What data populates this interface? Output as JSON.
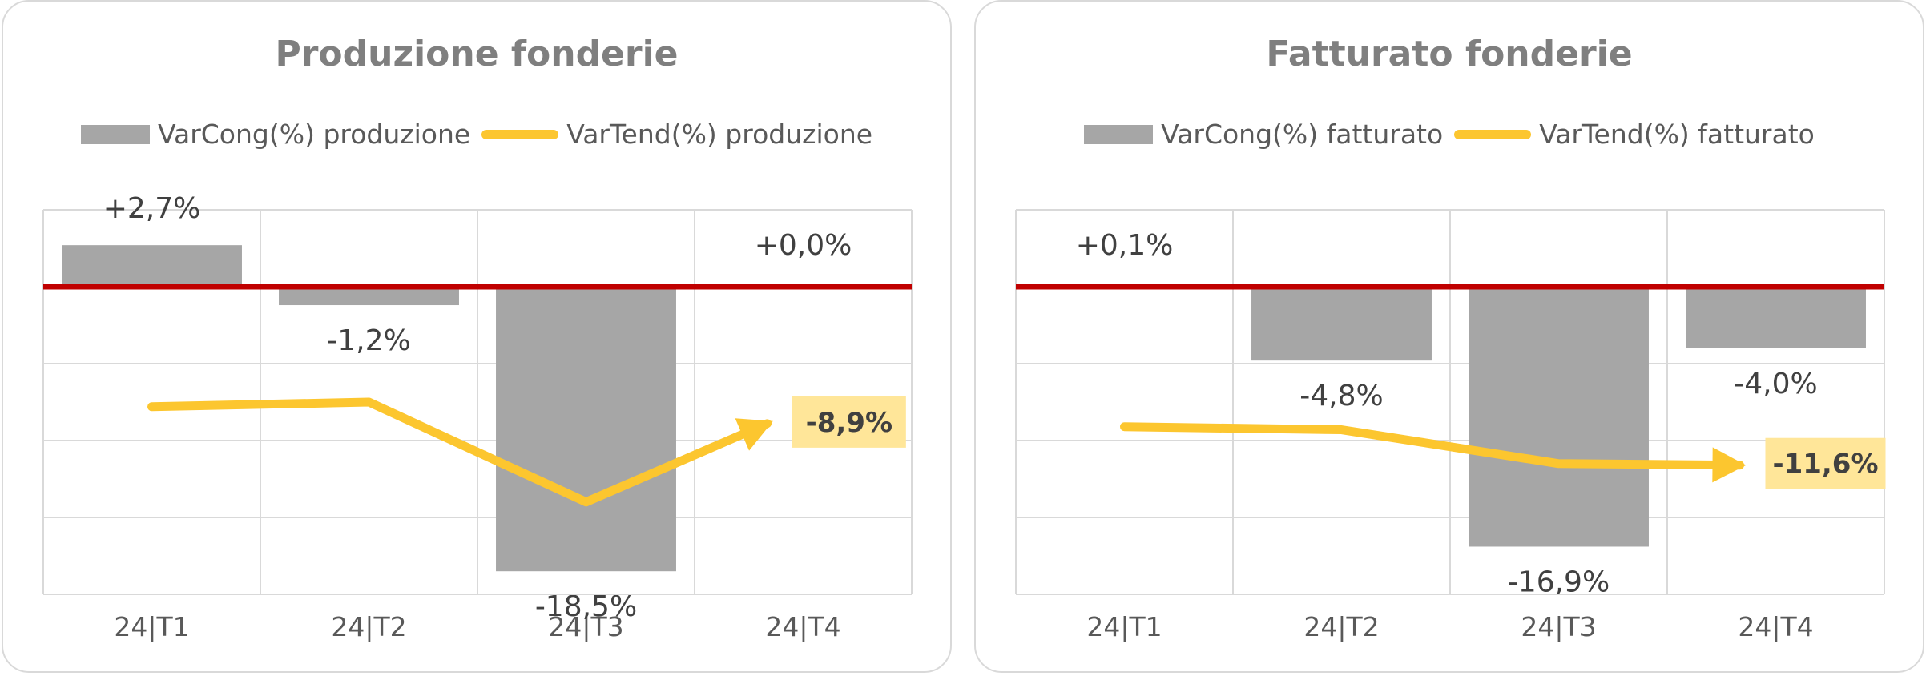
{
  "colors": {
    "bar": "#a6a6a6",
    "line": "#fcc62f",
    "zero_line": "#c00000",
    "grid": "#d9d9d9",
    "callout_bg": "#ffe699",
    "text": "#404040",
    "title": "#7f7f7f"
  },
  "chart_data": [
    {
      "type": "bar",
      "title": "Produzione fonderie",
      "categories": [
        "24|T1",
        "24|T2",
        "24|T3",
        "24|T4"
      ],
      "series": [
        {
          "name": "VarCong(%) produzione",
          "type": "bar",
          "values": [
            2.7,
            -1.2,
            -18.5,
            0.0
          ],
          "labels": [
            "+2,7%",
            "-1,2%",
            "-18,5%",
            "+0,0%"
          ]
        },
        {
          "name": "VarTend(%) produzione",
          "type": "line",
          "values": [
            -7.8,
            -7.5,
            -14.0,
            -8.9
          ],
          "end_label": "-8,9%"
        }
      ],
      "ylim": [
        -20,
        5
      ],
      "grid": true,
      "legend_position": "top"
    },
    {
      "type": "bar",
      "title": "Fatturato fonderie",
      "categories": [
        "24|T1",
        "24|T2",
        "24|T3",
        "24|T4"
      ],
      "series": [
        {
          "name": "VarCong(%) fatturato",
          "type": "bar",
          "values": [
            0.1,
            -4.8,
            -16.9,
            -4.0
          ],
          "labels": [
            "+0,1%",
            "-4,8%",
            "-16,9%",
            "-4,0%"
          ]
        },
        {
          "name": "VarTend(%) fatturato",
          "type": "line",
          "values": [
            -9.1,
            -9.3,
            -11.5,
            -11.6
          ],
          "end_label": "-11,6%"
        }
      ],
      "ylim": [
        -20,
        5
      ],
      "grid": true,
      "legend_position": "top"
    }
  ]
}
